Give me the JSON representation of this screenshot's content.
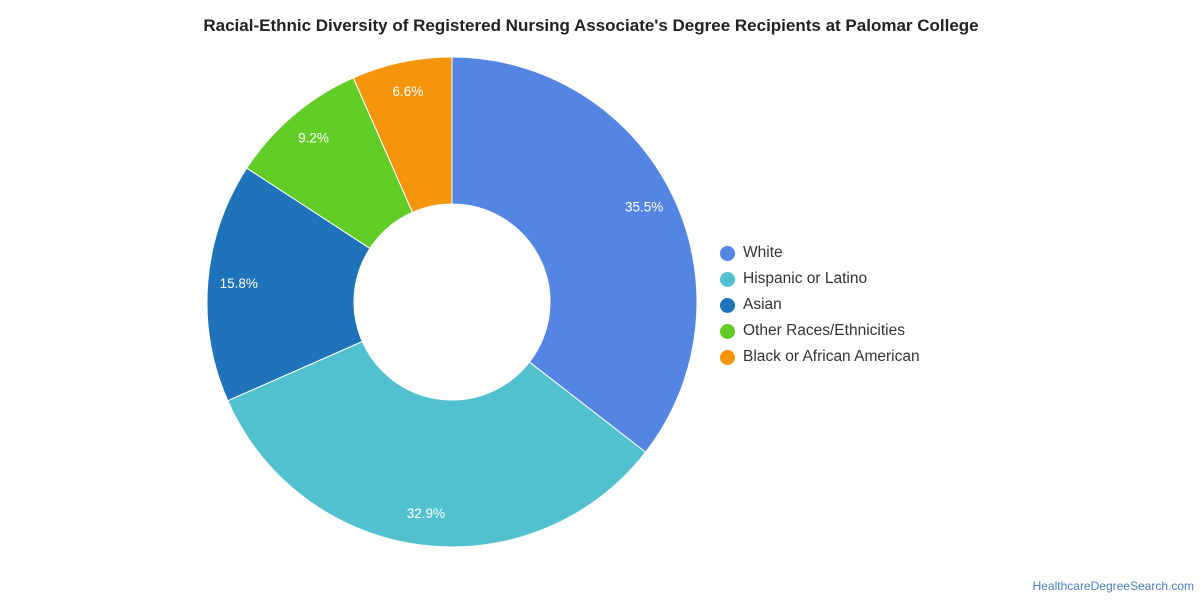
{
  "chart_data": {
    "type": "pie",
    "title": "Racial-Ethnic Diversity of Registered Nursing Associate's Degree Recipients at Palomar College",
    "donut": true,
    "legend_position": "right",
    "slices": [
      {
        "label": "White",
        "value": 35.5,
        "display": "35.5%",
        "color": "#5485e3"
      },
      {
        "label": "Hispanic or Latino",
        "value": 32.9,
        "display": "32.9%",
        "color": "#51c1cf"
      },
      {
        "label": "Asian",
        "value": 15.8,
        "display": "15.8%",
        "color": "#1f73ba"
      },
      {
        "label": "Other Races/Ethnicities",
        "value": 9.2,
        "display": "9.2%",
        "color": "#62cd26"
      },
      {
        "label": "Black or African American",
        "value": 6.6,
        "display": "6.6%",
        "color": "#f5950a"
      }
    ]
  },
  "footer": {
    "source": "HealthcareDegreeSearch.com"
  }
}
